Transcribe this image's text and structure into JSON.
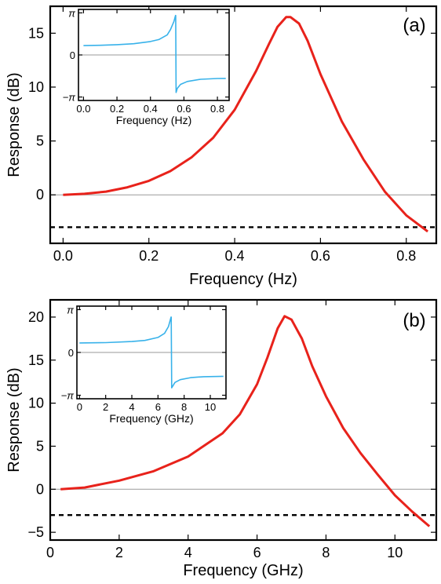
{
  "chart_data": [
    {
      "type": "line",
      "panel_label": "(a)",
      "xlabel": "Frequency (Hz)",
      "ylabel": "Response (dB)",
      "xlim": [
        -0.03,
        0.87
      ],
      "ylim": [
        -4.5,
        17.5
      ],
      "xticks": [
        0.0,
        0.2,
        0.4,
        0.6,
        0.8
      ],
      "xtick_labels": [
        "0.0",
        "0.2",
        "0.4",
        "0.6",
        "0.8"
      ],
      "yticks": [
        0,
        5,
        10,
        15
      ],
      "ytick_labels": [
        "0",
        "5",
        "10",
        "15"
      ],
      "reference_line_y": -3,
      "zero_line_y": 0,
      "series": [
        {
          "color": "#e8221b",
          "x": [
            0.0,
            0.05,
            0.1,
            0.15,
            0.2,
            0.25,
            0.3,
            0.35,
            0.4,
            0.45,
            0.48,
            0.5,
            0.52,
            0.53,
            0.55,
            0.57,
            0.6,
            0.65,
            0.7,
            0.75,
            0.8,
            0.85
          ],
          "y": [
            0.0,
            0.1,
            0.3,
            0.7,
            1.3,
            2.2,
            3.5,
            5.3,
            7.9,
            11.5,
            14.0,
            15.6,
            16.5,
            16.5,
            15.9,
            14.3,
            11.2,
            6.8,
            3.3,
            0.3,
            -1.9,
            -3.4
          ]
        }
      ],
      "inset": {
        "xlabel": "Frequency (Hz)",
        "xlim": [
          -0.03,
          0.87
        ],
        "ylim": [
          -3.4,
          3.4
        ],
        "xticks": [
          0.0,
          0.2,
          0.4,
          0.6,
          0.8
        ],
        "xtick_labels": [
          "0.0",
          "0.2",
          "0.4",
          "0.6",
          "0.8"
        ],
        "yticks": [
          3.1416,
          0,
          -3.1416
        ],
        "ytick_labels": [
          "π",
          "0",
          "−π"
        ],
        "zero_line_y": 0,
        "series": [
          {
            "color": "#38b2ea",
            "x": [
              0.0,
              0.1,
              0.2,
              0.3,
              0.4,
              0.45,
              0.5,
              0.52,
              0.54,
              0.55,
              0.551,
              0.553,
              0.56,
              0.58,
              0.62,
              0.7,
              0.8,
              0.85
            ],
            "y": [
              0.7,
              0.72,
              0.77,
              0.84,
              1.0,
              1.15,
              1.5,
              1.9,
              2.5,
              2.95,
              2.95,
              -2.8,
              -2.5,
              -2.2,
              -1.98,
              -1.82,
              -1.76,
              -1.75
            ]
          }
        ]
      }
    },
    {
      "type": "line",
      "panel_label": "(b)",
      "xlabel": "Frequency (GHz)",
      "ylabel": "Response (dB)",
      "xlim": [
        0,
        11.2
      ],
      "ylim": [
        -5.9,
        22
      ],
      "xticks": [
        0,
        2,
        4,
        6,
        8,
        10
      ],
      "xtick_labels": [
        "0",
        "2",
        "4",
        "6",
        "8",
        "10"
      ],
      "yticks": [
        -5,
        0,
        5,
        10,
        15,
        20
      ],
      "ytick_labels": [
        "−5",
        "0",
        "5",
        "10",
        "15",
        "20"
      ],
      "reference_line_y": -3,
      "zero_line_y": 0,
      "series": [
        {
          "color": "#e8221b",
          "x": [
            0.3,
            1,
            2,
            3,
            4,
            5,
            5.5,
            6,
            6.3,
            6.6,
            6.8,
            7,
            7.3,
            7.6,
            8,
            8.5,
            9,
            9.5,
            10,
            10.5,
            11
          ],
          "y": [
            0.0,
            0.2,
            1.0,
            2.1,
            3.8,
            6.5,
            8.7,
            12.2,
            15.3,
            18.7,
            20.1,
            19.7,
            17.5,
            14.3,
            10.8,
            7.1,
            4.2,
            1.7,
            -0.7,
            -2.6,
            -4.3
          ]
        }
      ],
      "inset": {
        "xlabel": "Frequency (GHz)",
        "xlim": [
          -0.2,
          11.2
        ],
        "ylim": [
          -3.4,
          3.4
        ],
        "xticks": [
          0,
          2,
          4,
          6,
          8,
          10
        ],
        "xtick_labels": [
          "0",
          "2",
          "4",
          "6",
          "8",
          "10"
        ],
        "yticks": [
          3.1416,
          0,
          -3.1416
        ],
        "ytick_labels": [
          "π",
          "0",
          "−π"
        ],
        "zero_line_y": 0,
        "series": [
          {
            "color": "#38b2ea",
            "x": [
              0.0,
              2,
              4,
              5,
              6,
              6.5,
              6.8,
              7.0,
              7.01,
              7.05,
              7.3,
              7.7,
              8.5,
              9.5,
              11.0
            ],
            "y": [
              0.7,
              0.72,
              0.8,
              0.88,
              1.1,
              1.4,
              1.9,
              2.6,
              2.6,
              -2.6,
              -2.2,
              -2.0,
              -1.85,
              -1.78,
              -1.75
            ]
          }
        ]
      }
    }
  ]
}
